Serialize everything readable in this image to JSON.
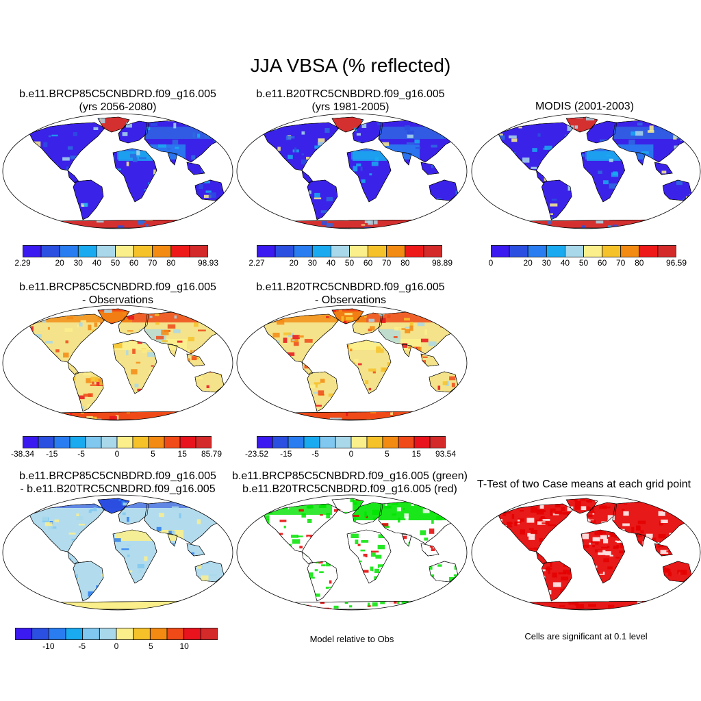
{
  "title": "JJA VBSA (% reflected)",
  "panels": [
    {
      "title1": "b.e11.BRCP85C5CNBDRD.f09_g16.005",
      "title2": "(yrs 2056-2080)",
      "kind": "abs"
    },
    {
      "title1": "b.e11.B20TRC5CNBDRD.f09_g16.005",
      "title2": "(yrs 1981-2005)",
      "kind": "abs"
    },
    {
      "title1": "MODIS (2001-2003)",
      "title2": "",
      "kind": "abs"
    },
    {
      "title1": "b.e11.BRCP85C5CNBDRD.f09_g16.005",
      "title2": "- Observations",
      "kind": "diff"
    },
    {
      "title1": "b.e11.B20TRC5CNBDRD.f09_g16.005",
      "title2": "- Observations",
      "kind": "diff"
    },
    {
      "title1": "b.e11.BRCP85C5CNBDRD.f09_g16.005",
      "title2": "- b.e11.B20TRC5CNBDRD.f09_g16.005",
      "kind": "casediff"
    },
    {
      "title1": "b.e11.BRCP85C5CNBDRD.f09_g16.005 (green)",
      "title2": "b.e11.B20TRC5CNBDRD.f09_g16.005 (red)",
      "kind": "rel"
    },
    {
      "title1": "T-Test of two Case means at each grid point",
      "title2": "",
      "kind": "ttest"
    }
  ],
  "colorbars": {
    "abs1": {
      "labels": [
        "2.29",
        "20",
        "30",
        "40",
        "50",
        "60",
        "70",
        "80",
        "98.93"
      ]
    },
    "abs2": {
      "labels": [
        "2.27",
        "20",
        "30",
        "40",
        "50",
        "60",
        "70",
        "80",
        "98.89"
      ]
    },
    "abs3": {
      "labels": [
        "0",
        "20",
        "30",
        "40",
        "50",
        "60",
        "70",
        "80",
        "96.59"
      ]
    },
    "diff1": {
      "labels": [
        "-38.34",
        "-15",
        "-5",
        "0",
        "5",
        "15",
        "85.79"
      ]
    },
    "diff2": {
      "labels": [
        "-23.52",
        "-15",
        "-5",
        "0",
        "5",
        "15",
        "93.54"
      ]
    },
    "casediff": {
      "labels": [
        "-10",
        "-5",
        "0",
        "5",
        "10"
      ]
    }
  },
  "notes": {
    "relative": "Model relative to Obs",
    "significance": "Cells are significant at 0.1 level"
  },
  "colors": {
    "abs_scale": [
      "#3a1af0",
      "#2b4fe0",
      "#2a7df0",
      "#1aaaf0",
      "#a8d8ea",
      "#fbef8c",
      "#f6c22a",
      "#f38a12",
      "#ee1a1a",
      "#d42a2a"
    ],
    "diff_scale": [
      "#3a1af0",
      "#2b4fe0",
      "#2a7df0",
      "#1aaaf0",
      "#80c8f0",
      "#a8d8ea",
      "#fbef8c",
      "#f6c22a",
      "#f38a12",
      "#ef4a18",
      "#e8131c",
      "#d42a2a"
    ],
    "land_abs": "#3b22e8",
    "land_mid": "#2e6ae0",
    "land_diff": "#f4e38a",
    "land_casediff": "#b2dcee",
    "green": "#00e400",
    "red": "#e40000",
    "polar": "#d43030"
  }
}
